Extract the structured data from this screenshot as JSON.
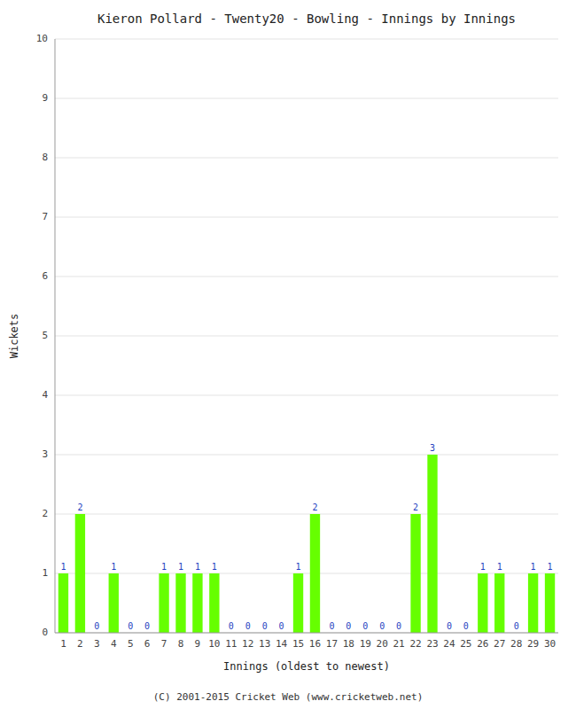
{
  "chart_data": {
    "type": "bar",
    "title": "Kieron Pollard - Twenty20 - Bowling - Innings by Innings",
    "x_label": "Innings (oldest to newest)",
    "y_label": "Wickets",
    "footer": "(C) 2001-2015 Cricket Web (www.cricketweb.net)",
    "categories": [
      "1",
      "2",
      "3",
      "4",
      "5",
      "6",
      "7",
      "8",
      "9",
      "10",
      "11",
      "12",
      "13",
      "14",
      "15",
      "16",
      "17",
      "18",
      "19",
      "20",
      "21",
      "22",
      "23",
      "24",
      "25",
      "26",
      "27",
      "28",
      "29",
      "30"
    ],
    "values": [
      1,
      2,
      0,
      1,
      0,
      0,
      1,
      1,
      1,
      1,
      0,
      0,
      0,
      0,
      1,
      2,
      0,
      0,
      0,
      0,
      0,
      2,
      3,
      0,
      0,
      1,
      1,
      0,
      1,
      1
    ],
    "color": "#66ff00",
    "ylim": [
      0,
      10
    ],
    "yticks": [
      0,
      1,
      2,
      3,
      4,
      5,
      6,
      7,
      8,
      9,
      10
    ],
    "grid": true,
    "data_labels": true
  }
}
